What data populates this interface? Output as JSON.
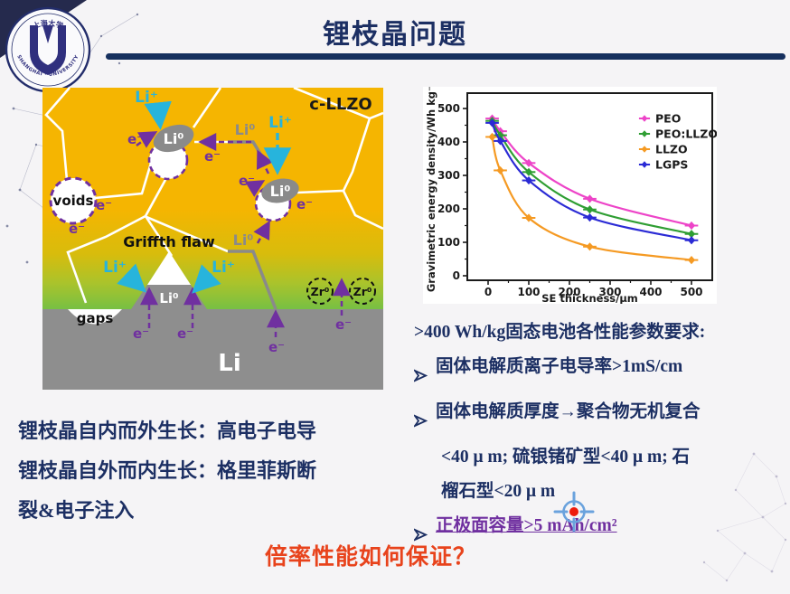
{
  "slide": {
    "title": "锂枝晶问题",
    "rate_question": "倍率性能如何保证？"
  },
  "logo": {
    "top_arc": "上海大学",
    "bottom_arc": "SHANGHAI · UNIVERSITY"
  },
  "diagram": {
    "labels": {
      "material": "c-LLZO",
      "li_ion": "Li⁺",
      "li_atom": "Li⁰",
      "electron": "e⁻",
      "voids": "voids",
      "gaps": "gaps",
      "griffith_flaw": "Griffth flaw",
      "zr_atom": "Zr⁰",
      "li_metal": "Li"
    }
  },
  "chart_data": {
    "type": "line",
    "title": "",
    "xlabel": "SE thickness/μm",
    "ylabel": "Gravimetric energy density/Wh kg⁻¹",
    "x": [
      10,
      30,
      100,
      250,
      500
    ],
    "series": [
      {
        "name": "PEO",
        "color": "#ED44C8",
        "values": [
          470,
          432,
          337,
          230,
          150
        ]
      },
      {
        "name": "PEO:LLZO",
        "color": "#2F9E33",
        "values": [
          463,
          420,
          310,
          198,
          125
        ]
      },
      {
        "name": "LLZO",
        "color": "#F59A23",
        "values": [
          415,
          315,
          173,
          87,
          47
        ]
      },
      {
        "name": "LGPS",
        "color": "#2B2BD5",
        "values": [
          457,
          403,
          285,
          174,
          106
        ]
      }
    ],
    "xlim": [
      -50,
      550
    ],
    "ylim": [
      0,
      550
    ],
    "x_ticks": [
      0,
      100,
      200,
      300,
      400,
      500
    ],
    "y_ticks": [
      0,
      100,
      200,
      300,
      400,
      500
    ],
    "legend_position": "top-right",
    "grid": false
  },
  "requirements": {
    "heading": ">400 Wh/kg固态电池各性能参数要求:",
    "bullet_icon": "triangle-arrow",
    "items": [
      {
        "text": "固体电解质离子电导率>1mS/cm"
      },
      {
        "text": "固体电解质厚度→聚合物无机复合",
        "cont": [
          "<40 μ m; 硫银锗矿型<40 μ m; 石",
          "榴石型<20 μ m"
        ]
      },
      {
        "text": "正极面容量>5 mAh/cm²"
      }
    ]
  },
  "left_notes": {
    "lines": [
      "锂枝晶自内而外生长：高电子电导",
      "锂枝晶自外而内生长：格里菲斯断",
      "裂&电子注入"
    ]
  }
}
